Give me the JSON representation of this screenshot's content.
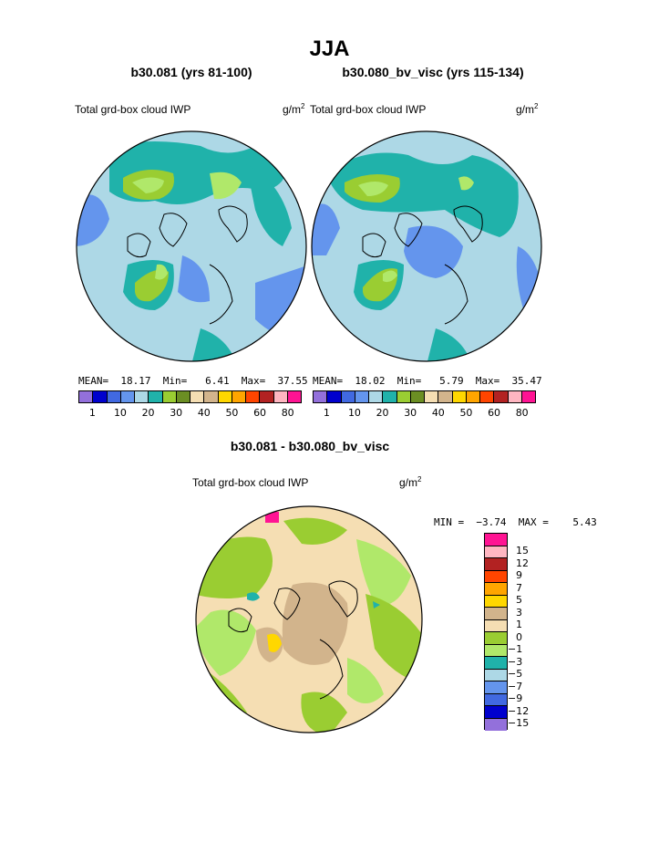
{
  "title": "JJA",
  "panels": [
    {
      "subtitle": "b30.081 (yrs 81-100)",
      "field_label": "Total grd-box cloud IWP",
      "units": "g/m",
      "units_sup": "2",
      "stats_text": "MEAN=  18.17  Min=   6.41  Max=  37.55"
    },
    {
      "subtitle": "b30.080_bv_visc (yrs 115-134)",
      "field_label": "Total grd-box cloud IWP",
      "units": "g/m",
      "units_sup": "2",
      "stats_text": "MEAN=  18.02  Min=   5.79  Max=  35.47"
    }
  ],
  "abs_colorbar": {
    "colors": [
      "#9370db",
      "#0000cd",
      "#4169e1",
      "#6495ed",
      "#add8e6",
      "#20b2aa",
      "#9acd32",
      "#6b8e23",
      "#f5deb3",
      "#d2b48c",
      "#ffd700",
      "#ffa500",
      "#ff4500",
      "#b22222",
      "#ffb6c1",
      "#ff1493"
    ],
    "labels": [
      "1",
      "10",
      "20",
      "30",
      "40",
      "50",
      "60",
      "80"
    ]
  },
  "diff_panel": {
    "subtitle": "b30.081 - b30.080_bv_visc",
    "field_label": "Total grd-box cloud IWP",
    "units": "g/m",
    "units_sup": "2",
    "minmax_text": "MIN =  −3.74  MAX =    5.43"
  },
  "diff_colorbar": {
    "colors": [
      "#ff1493",
      "#ffb6c1",
      "#b22222",
      "#ff4500",
      "#ffa500",
      "#ffd700",
      "#d2b48c",
      "#f5deb3",
      "#9acd32",
      "#b0e86a",
      "#20b2aa",
      "#add8e6",
      "#6495ed",
      "#4169e1",
      "#0000cd",
      "#9370db"
    ],
    "labels": [
      "15",
      "12",
      "9",
      "7",
      "5",
      "3",
      "1",
      "0",
      "−1",
      "−3",
      "−5",
      "−7",
      "−9",
      "−12",
      "−15"
    ]
  }
}
